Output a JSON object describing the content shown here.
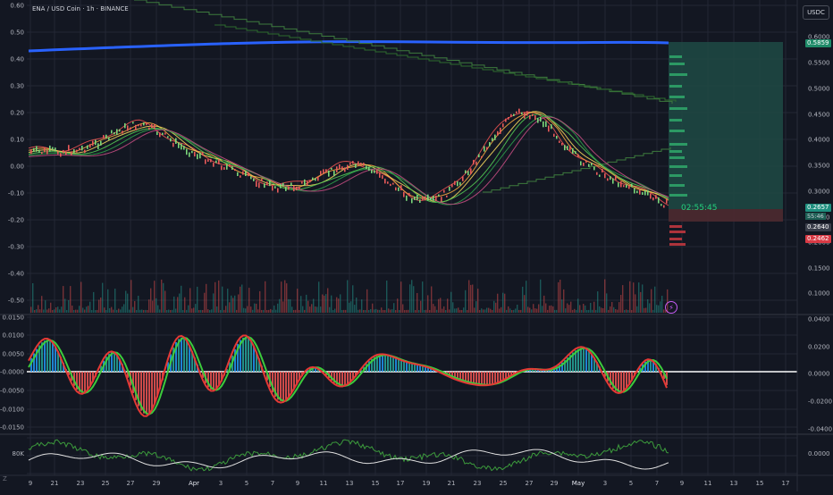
{
  "header": {
    "symbol": "ENA / USD Coin · 1h · BINANCE",
    "currency_button": "USDC"
  },
  "left_axis": {
    "price_pane": [
      "0.60",
      "0.50",
      "0.40",
      "0.30",
      "0.20",
      "0.10",
      "0.00",
      "-0.10",
      "-0.20",
      "-0.30",
      "-0.40",
      "-0.50"
    ],
    "osc_pane": [
      "0.0150",
      "0.0100",
      "0.0050",
      "-0.0000",
      "-0.0050",
      "-0.0100",
      "-0.0150"
    ],
    "bottom_pane": [
      "80K"
    ]
  },
  "right_axis": {
    "price_pane": [
      "0.6000",
      "0.5500",
      "0.5000",
      "0.4500",
      "0.4000",
      "0.3500",
      "0.3000",
      "0.2500",
      "0.2000",
      "0.1500",
      "0.1000"
    ],
    "osc_pane": [
      "0.0400",
      "0.0200",
      "0.0000",
      "-0.0200",
      "-0.0400"
    ],
    "bottom_pane": [
      "0.0000"
    ]
  },
  "tags": {
    "target": "0.5859",
    "last_price": "0.2657",
    "countdown_small": "55:46",
    "entry": "0.2640",
    "stop": "0.2462",
    "countdown_big": "02:55:45"
  },
  "time_axis": [
    "9",
    "21",
    "23",
    "25",
    "27",
    "29",
    "Apr",
    "3",
    "5",
    "7",
    "9",
    "11",
    "13",
    "15",
    "17",
    "19",
    "21",
    "23",
    "25",
    "27",
    "29",
    "May",
    "3",
    "5",
    "7",
    "9",
    "11",
    "13",
    "15",
    "17"
  ],
  "corner_icon": "⚡",
  "left_corner_label": "Z",
  "colors": {
    "background": "#131722",
    "grid": "#232734",
    "ma_blue": "#2962ff",
    "step_green": "#4caf50",
    "up": "#26a69a",
    "down": "#ef5350",
    "position_target": "#1e4a44",
    "position_stop": "#4e2a30"
  }
}
